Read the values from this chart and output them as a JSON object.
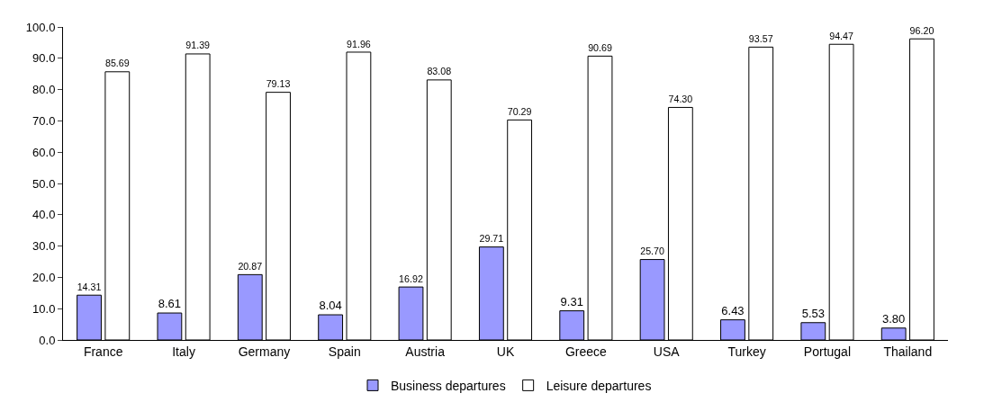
{
  "chart_data": {
    "type": "bar",
    "categories": [
      "France",
      "Italy",
      "Germany",
      "Spain",
      "Austria",
      "UK",
      "Greece",
      "USA",
      "Turkey",
      "Portugal",
      "Thailand"
    ],
    "series": [
      {
        "name": "Business departures",
        "color": "#9999ff",
        "values": [
          14.31,
          8.61,
          20.87,
          8.04,
          16.92,
          29.71,
          9.31,
          25.7,
          6.43,
          5.53,
          3.8
        ],
        "value_labels": [
          "14.31",
          "8.61",
          "20.87",
          "8.04",
          "16.92",
          "29.71",
          "9.31",
          "25.70",
          "6.43",
          "5.53",
          "3.80"
        ]
      },
      {
        "name": "Leisure departures",
        "color": "#ffffff",
        "values": [
          85.69,
          91.39,
          79.13,
          91.96,
          83.08,
          70.29,
          90.69,
          74.3,
          93.57,
          94.47,
          96.2
        ],
        "value_labels": [
          "85.69",
          "91.39",
          "79.13",
          "91.96",
          "83.08",
          "70.29",
          "90.69",
          "74.30",
          "93.57",
          "94.47",
          "96.20"
        ]
      }
    ],
    "ylim": [
      0,
      100
    ],
    "yticks": [
      {
        "value": 0,
        "label": "0.0"
      },
      {
        "value": 10,
        "label": "10.0"
      },
      {
        "value": 20,
        "label": "20.0"
      },
      {
        "value": 30,
        "label": "30.0"
      },
      {
        "value": 40,
        "label": "40.0"
      },
      {
        "value": 50,
        "label": "50.0"
      },
      {
        "value": 60,
        "label": "60.0"
      },
      {
        "value": 70,
        "label": "70.0"
      },
      {
        "value": 80,
        "label": "80.0"
      },
      {
        "value": 90,
        "label": "90.0"
      },
      {
        "value": 100,
        "label": "100.0"
      }
    ],
    "grid": false,
    "legend": "bottom"
  }
}
